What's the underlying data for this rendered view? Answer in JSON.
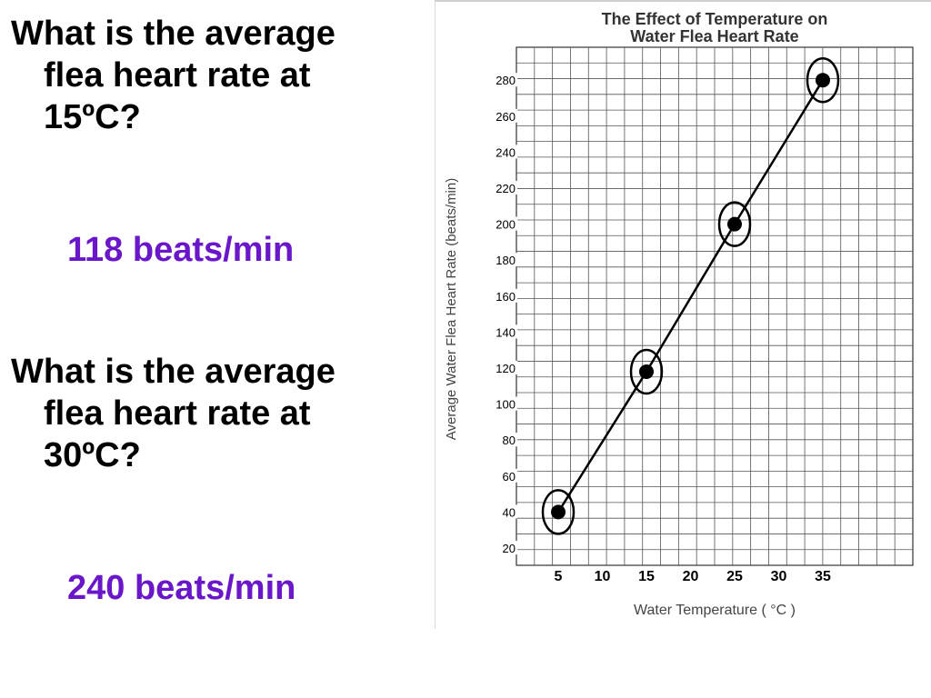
{
  "questions": [
    {
      "lines": [
        "What is the average",
        "flea heart rate at",
        "15ºC?"
      ],
      "answer": "118 beats/min"
    },
    {
      "lines": [
        "What is the average",
        "flea heart rate at",
        "30ºC?"
      ],
      "answer": "240 beats/min"
    }
  ],
  "colors": {
    "question_text": "#000000",
    "answer_text": "#6a16c9",
    "grid": "#333333",
    "line": "#000000"
  },
  "chart_data": {
    "type": "line",
    "title_lines": [
      "The Effect of Temperature on",
      "Water Flea Heart Rate"
    ],
    "xlabel": "Water Temperature ( °C )",
    "ylabel": "Average Water Flea Heart Rate (beats/min)",
    "x_ticks": [
      "5",
      "10",
      "15",
      "20",
      "25",
      "30",
      "35"
    ],
    "y_ticks": [
      "20",
      "40",
      "60",
      "80",
      "100",
      "120",
      "140",
      "160",
      "180",
      "200",
      "220",
      "240",
      "260",
      "280"
    ],
    "xlim": [
      5,
      35
    ],
    "ylim": [
      20,
      280
    ],
    "grid": true,
    "series": [
      {
        "x": [
          5,
          15,
          25,
          35
        ],
        "y": [
          40,
          118,
          200,
          280
        ],
        "markers": "filled-circle",
        "highlight": "circled"
      }
    ]
  }
}
